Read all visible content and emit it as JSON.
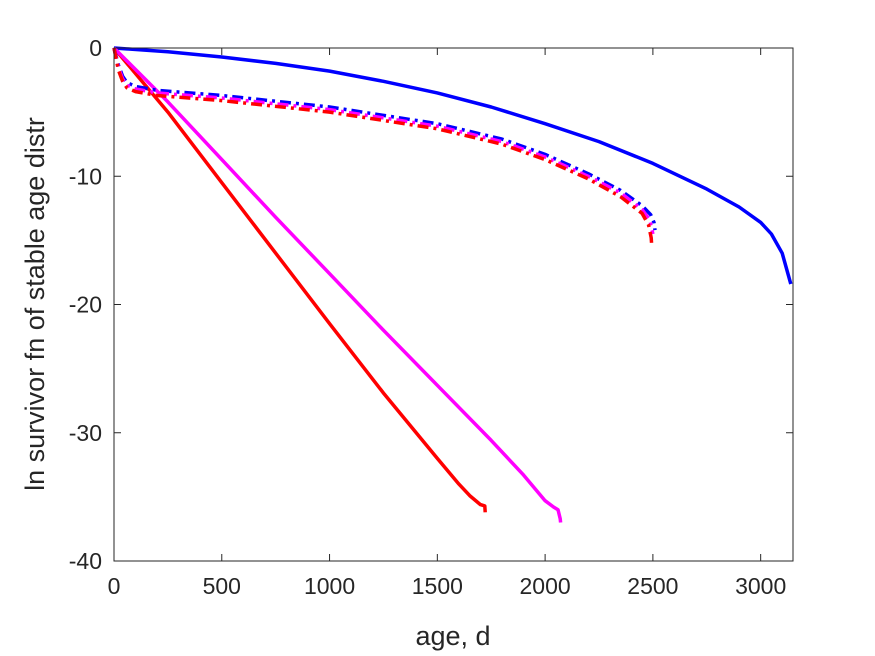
{
  "chart_data": {
    "type": "line",
    "title": "",
    "xlabel": "age, d",
    "ylabel": "ln survivor fn of stable age distr",
    "xlim": [
      0,
      3150
    ],
    "ylim": [
      -40,
      0
    ],
    "xticks": [
      0,
      500,
      1000,
      1500,
      2000,
      2500,
      3000
    ],
    "yticks": [
      0,
      -10,
      -20,
      -30,
      -40
    ],
    "xtick_labels": [
      "0",
      "500",
      "1000",
      "1500",
      "2000",
      "2500",
      "3000"
    ],
    "ytick_labels": [
      "0",
      "-10",
      "-20",
      "-30",
      "-40"
    ],
    "grid": false,
    "legend": "none",
    "series": [
      {
        "color": "#0000ff",
        "style": "solid",
        "x": [
          0,
          250,
          500,
          750,
          1000,
          1250,
          1500,
          1750,
          2000,
          2250,
          2500,
          2750,
          2900,
          3000,
          3050,
          3100,
          3140
        ],
        "y": [
          0,
          -0.3,
          -0.7,
          -1.2,
          -1.8,
          -2.6,
          -3.5,
          -4.6,
          -5.9,
          -7.3,
          -9.0,
          -11.0,
          -12.4,
          -13.6,
          -14.5,
          -16.0,
          -18.4
        ]
      },
      {
        "color": "#ff0000",
        "style": "solid",
        "x": [
          0,
          250,
          500,
          750,
          1000,
          1250,
          1500,
          1600,
          1650,
          1700,
          1720,
          1722
        ],
        "y": [
          0,
          -5.0,
          -10.5,
          -16.0,
          -21.5,
          -26.9,
          -32.0,
          -34.0,
          -34.9,
          -35.6,
          -35.7,
          -36.2
        ]
      },
      {
        "color": "#ff00ff",
        "style": "solid",
        "x": [
          0,
          250,
          500,
          750,
          1000,
          1250,
          1500,
          1750,
          1900,
          2000,
          2040,
          2060,
          2070,
          2072
        ],
        "y": [
          0,
          -4.2,
          -8.7,
          -13.2,
          -17.6,
          -22.0,
          -26.3,
          -30.6,
          -33.3,
          -35.3,
          -35.8,
          -36.0,
          -36.7,
          -37.0
        ]
      },
      {
        "color": "#0000ff",
        "style": "dashdot",
        "x": [
          0,
          20,
          40,
          60,
          100,
          200,
          500,
          1000,
          1500,
          1800,
          2000,
          2200,
          2350,
          2450,
          2490,
          2505,
          2510
        ],
        "y": [
          0,
          -1.3,
          -2.2,
          -2.7,
          -3.0,
          -3.3,
          -3.7,
          -4.6,
          -5.9,
          -7.1,
          -8.3,
          -9.8,
          -11.1,
          -12.3,
          -13.0,
          -13.6,
          -14.2
        ]
      },
      {
        "color": "#ff00ff",
        "style": "dashdot",
        "x": [
          0,
          20,
          40,
          60,
          100,
          200,
          500,
          1000,
          1500,
          1800,
          2000,
          2200,
          2350,
          2450,
          2485,
          2500
        ],
        "y": [
          0,
          -1.5,
          -2.4,
          -2.9,
          -3.2,
          -3.5,
          -3.9,
          -4.8,
          -6.1,
          -7.3,
          -8.5,
          -10.0,
          -11.3,
          -12.6,
          -13.4,
          -14.5
        ]
      },
      {
        "color": "#ff0000",
        "style": "dashdot",
        "x": [
          0,
          20,
          40,
          60,
          100,
          200,
          500,
          1000,
          1500,
          1800,
          2000,
          2200,
          2350,
          2450,
          2480,
          2492,
          2495
        ],
        "y": [
          0,
          -1.7,
          -2.6,
          -3.1,
          -3.4,
          -3.7,
          -4.1,
          -5.0,
          -6.3,
          -7.5,
          -8.7,
          -10.2,
          -11.6,
          -12.9,
          -13.8,
          -14.8,
          -15.5
        ]
      }
    ]
  }
}
